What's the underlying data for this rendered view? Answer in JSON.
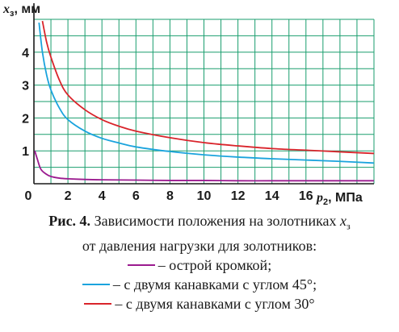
{
  "chart_data": {
    "type": "line",
    "ylabel_var": "x",
    "ylabel_sub": "з",
    "ylabel_unit": ", мм",
    "xlabel_var": "p",
    "xlabel_sub": "2",
    "xlabel_unit": ", МПа",
    "xlim": [
      0,
      20
    ],
    "ylim": [
      0,
      5
    ],
    "x_ticks": [
      0,
      2,
      4,
      6,
      8,
      10,
      12,
      14,
      16
    ],
    "y_ticks": [
      1,
      2,
      3,
      4
    ],
    "grid": true,
    "grid_color": "#1a9e6e",
    "series": [
      {
        "name": "– острой кромкой;",
        "color": "#9b1a8f",
        "x": [
          0.05,
          0.2,
          0.4,
          0.7,
          1.0,
          1.5,
          2,
          3,
          4,
          6,
          8,
          10,
          12,
          14,
          16,
          18,
          20
        ],
        "y": [
          1.0,
          0.75,
          0.45,
          0.3,
          0.22,
          0.17,
          0.15,
          0.13,
          0.12,
          0.11,
          0.1,
          0.1,
          0.09,
          0.09,
          0.09,
          0.09,
          0.09
        ]
      },
      {
        "name": "– с двумя канавками с углом 45°;",
        "color": "#1aa3dd",
        "x": [
          0.3,
          0.5,
          0.75,
          1,
          1.5,
          2,
          3,
          4,
          5,
          6,
          8,
          10,
          12,
          14,
          16,
          18,
          20
        ],
        "y": [
          4.9,
          4.0,
          3.3,
          2.85,
          2.3,
          1.95,
          1.6,
          1.38,
          1.24,
          1.12,
          0.98,
          0.88,
          0.81,
          0.76,
          0.72,
          0.68,
          0.63
        ]
      },
      {
        "name": "– с двумя канавками с углом 30°",
        "color": "#d9242b",
        "x": [
          0.5,
          0.75,
          1,
          1.5,
          2,
          3,
          4,
          5,
          6,
          8,
          10,
          12,
          14,
          16,
          18,
          20
        ],
        "y": [
          4.95,
          4.3,
          3.85,
          3.15,
          2.7,
          2.25,
          1.95,
          1.75,
          1.6,
          1.4,
          1.25,
          1.15,
          1.07,
          1.02,
          0.97,
          0.92
        ]
      }
    ]
  },
  "caption": {
    "label": "Рис. 4.",
    "line1_text": " Зависимости положения на золотниках ",
    "var": "x",
    "var_sub": "з",
    "line2": "от давления нагрузки для золотников:"
  }
}
